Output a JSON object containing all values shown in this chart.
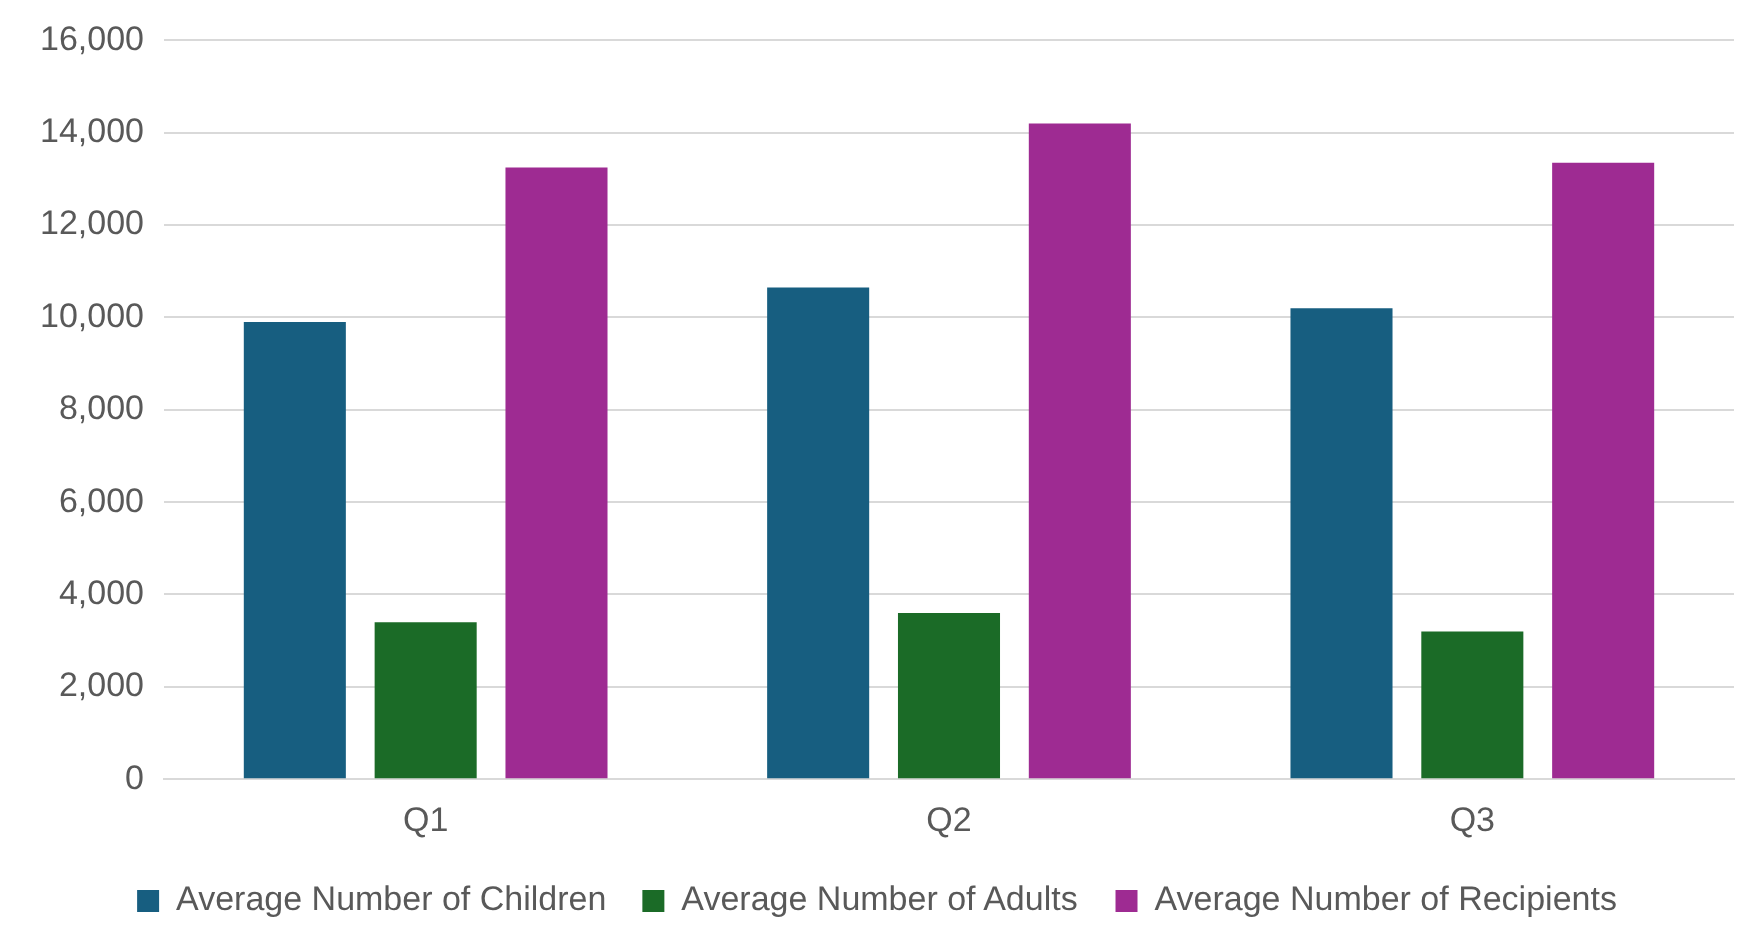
{
  "chart_data": {
    "type": "bar",
    "categories": [
      "Q1",
      "Q2",
      "Q3"
    ],
    "series": [
      {
        "name": "Average Number of Children",
        "color": "#175e80",
        "values": [
          9900,
          10650,
          10200
        ]
      },
      {
        "name": "Average Number of Adults",
        "color": "#1b6b27",
        "values": [
          3400,
          3600,
          3200
        ]
      },
      {
        "name": "Average Number of Recipients",
        "color": "#9e2b92",
        "values": [
          13250,
          14200,
          13350
        ]
      }
    ],
    "ylim": [
      0,
      16000
    ],
    "yticks": [
      {
        "value": 0,
        "label": "0"
      },
      {
        "value": 2000,
        "label": "2,000"
      },
      {
        "value": 4000,
        "label": "4,000"
      },
      {
        "value": 6000,
        "label": "6,000"
      },
      {
        "value": 8000,
        "label": "8,000"
      },
      {
        "value": 10000,
        "label": "10,000"
      },
      {
        "value": 12000,
        "label": "12,000"
      },
      {
        "value": 14000,
        "label": "14,000"
      },
      {
        "value": 16000,
        "label": "16,000"
      }
    ],
    "grid": "y",
    "legend": "bottom"
  }
}
